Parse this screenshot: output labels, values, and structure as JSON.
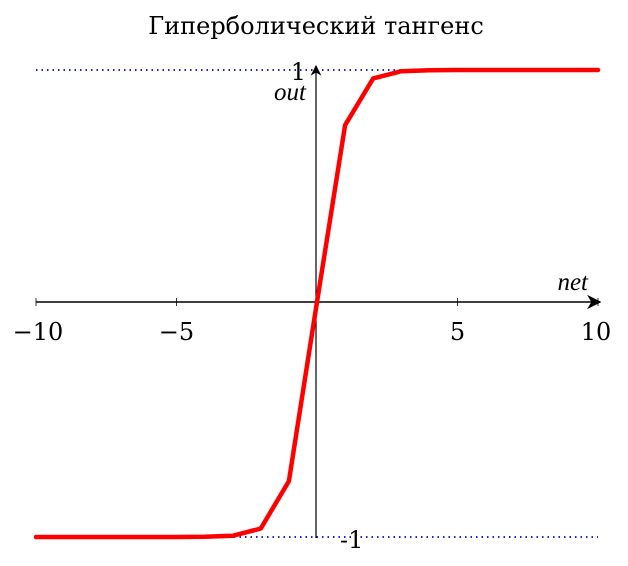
{
  "chart_data": {
    "type": "line",
    "title": "Гиперболический тангенс",
    "xlabel": "net",
    "ylabel": "out",
    "xlim": [
      -10,
      10
    ],
    "ylim": [
      -1,
      1
    ],
    "x_ticks": [
      -10,
      -5,
      5,
      10
    ],
    "x_tick_labels": [
      "−10",
      "−5",
      "5",
      "10"
    ],
    "y_tick_labels": {
      "top": "1",
      "bottom": "-1"
    },
    "asymptotes": [
      1,
      -1
    ],
    "series": [
      {
        "color": "#ff0000",
        "x": [
          -10,
          -9,
          -8,
          -7,
          -6,
          -5,
          -4,
          -3,
          -2,
          -1,
          0,
          1,
          2,
          3,
          4,
          5,
          6,
          7,
          8,
          9,
          10
        ],
        "y": [
          -1.0,
          -1.0,
          -1.0,
          -1.0,
          -1.0,
          -1.0,
          -0.999,
          -0.995,
          -0.964,
          -0.762,
          0.0,
          0.762,
          0.964,
          0.995,
          0.999,
          1.0,
          1.0,
          1.0,
          1.0,
          1.0,
          1.0
        ]
      }
    ],
    "asymptote_color": "#0000cc",
    "grid": false
  }
}
